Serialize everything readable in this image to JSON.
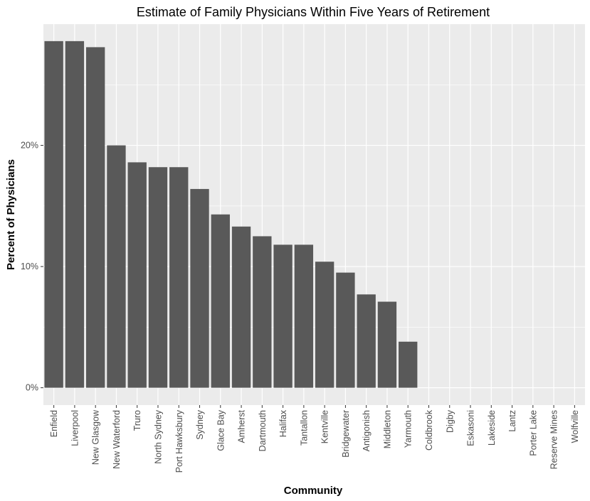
{
  "chart_data": {
    "type": "bar",
    "title": "Estimate of Family Physicians Within Five Years of Retirement",
    "xlabel": "Community",
    "ylabel": "Percent of Physicians",
    "categories": [
      "Enfield",
      "Liverpool",
      "New Glasgow",
      "New Waterford",
      "Truro",
      "North Sydney",
      "Port Hawksbury",
      "Sydney",
      "Glace Bay",
      "Amherst",
      "Dartmouth",
      "Halifax",
      "Tantallon",
      "Kentville",
      "Bridgewater",
      "Antigonish",
      "Middleton",
      "Yarmouth",
      "Coldbrook",
      "Digby",
      "Eskasoni",
      "Lakeside",
      "Lantz",
      "Porter Lake",
      "Reserve Mines",
      "Wolfville"
    ],
    "values": [
      28.6,
      28.6,
      28.1,
      20.0,
      18.6,
      18.2,
      18.2,
      16.4,
      14.3,
      13.3,
      12.5,
      11.8,
      11.8,
      10.4,
      9.5,
      7.7,
      7.1,
      3.8,
      0,
      0,
      0,
      0,
      0,
      0,
      0,
      0
    ],
    "y_tick_labels": [
      "0%",
      "10%",
      "20%"
    ],
    "y_ticks": [
      0,
      10,
      20
    ],
    "ylim": [
      -1.43,
      30.0
    ],
    "grid": true,
    "colors": {
      "panel": "#EBEBEB",
      "grid_major": "#FFFFFF",
      "bar": "#595959",
      "tick_text": "#4D4D4D"
    }
  }
}
